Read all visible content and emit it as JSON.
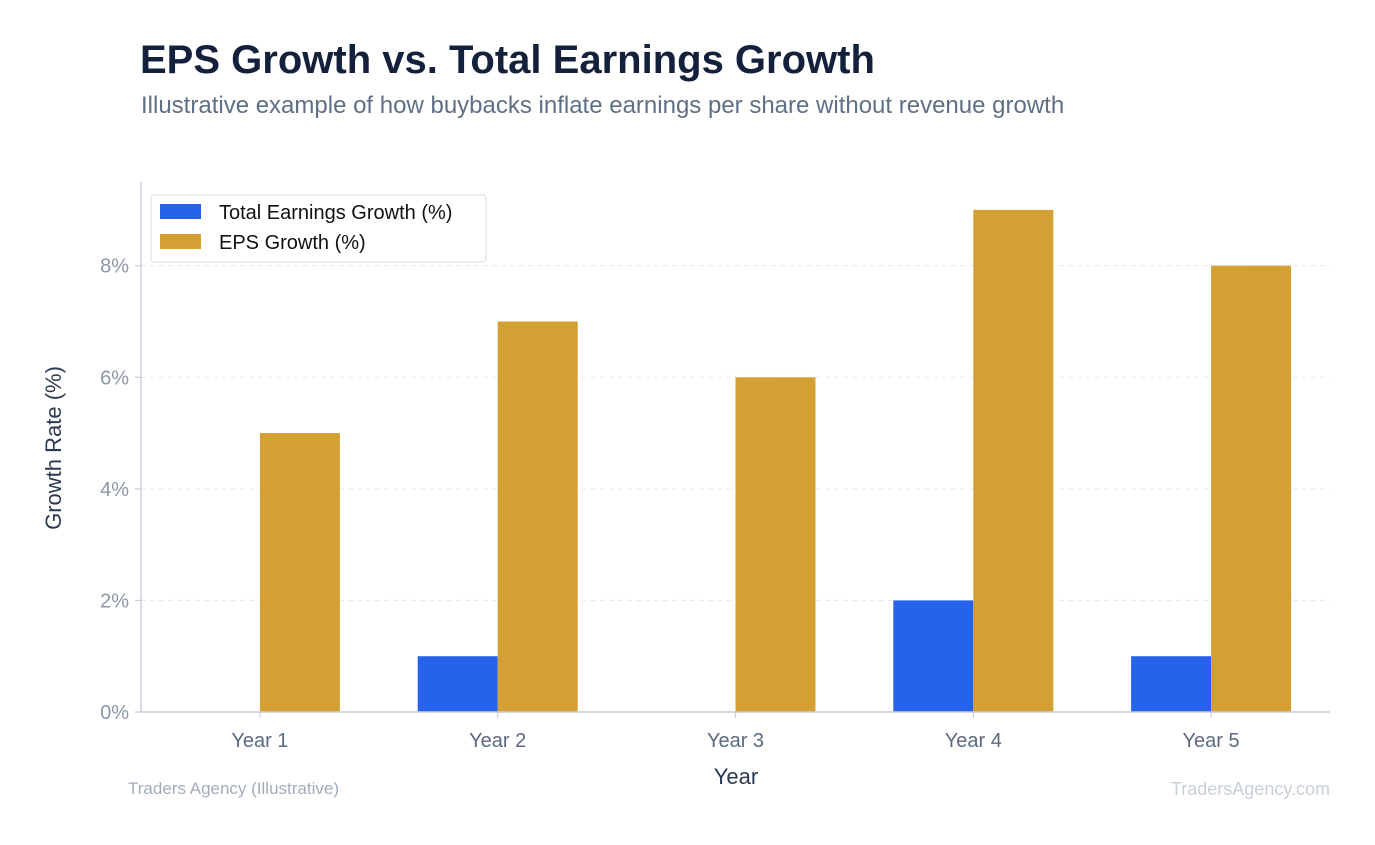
{
  "header": {
    "title": "EPS Growth vs. Total Earnings Growth",
    "subtitle": "Illustrative example of how buybacks inflate earnings per share without revenue growth"
  },
  "footer": {
    "source": "Traders Agency (Illustrative)",
    "watermark": "TradersAgency.com"
  },
  "chart_data": {
    "type": "bar",
    "title": "EPS Growth vs. Total Earnings Growth",
    "subtitle": "Illustrative example of how buybacks inflate earnings per share without revenue growth",
    "xlabel": "Year",
    "ylabel": "Growth Rate (%)",
    "categories": [
      "Year 1",
      "Year 2",
      "Year 3",
      "Year 4",
      "Year 5"
    ],
    "series": [
      {
        "name": "Total Earnings Growth (%)",
        "values": [
          0,
          1,
          0,
          2,
          1
        ],
        "color": "#2563eb"
      },
      {
        "name": "EPS Growth (%)",
        "values": [
          5,
          7,
          6,
          9,
          8
        ],
        "color": "#d4a033"
      }
    ],
    "ylim": [
      0,
      9.5
    ],
    "yticks": [
      0,
      2,
      4,
      6,
      8
    ],
    "ytick_labels": [
      "0%",
      "2%",
      "4%",
      "6%",
      "8%"
    ],
    "grid": true,
    "legend_position": "top-left"
  }
}
